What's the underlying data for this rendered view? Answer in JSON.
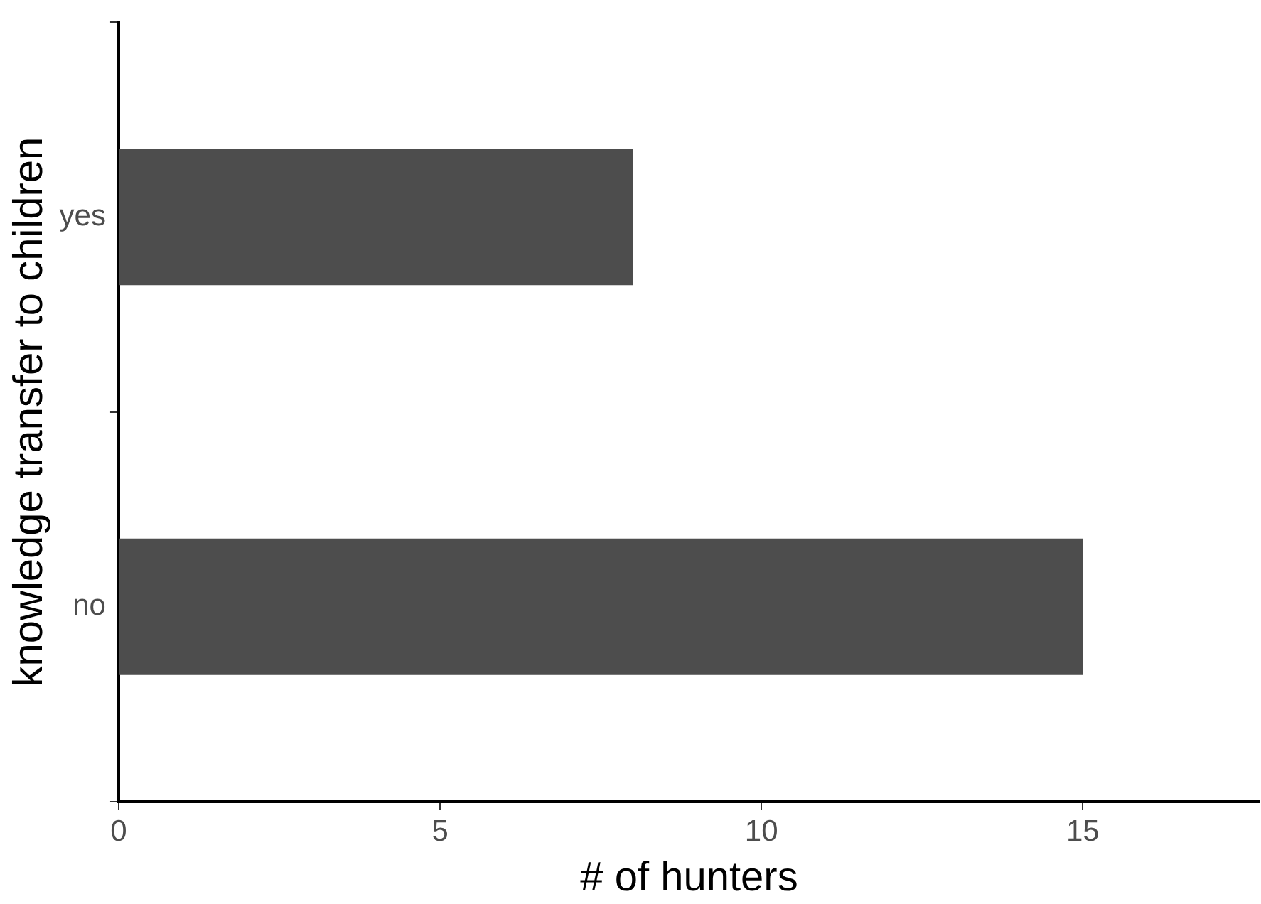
{
  "chart_data": {
    "type": "bar",
    "orientation": "horizontal",
    "categories": [
      "yes",
      "no"
    ],
    "values": [
      8,
      15
    ],
    "color": "#4d4d4d",
    "xlabel": "# of hunters",
    "ylabel": "knowledge transfer to children",
    "xlim": [
      0,
      17.75
    ],
    "xticks": [
      0,
      5,
      10,
      15
    ],
    "grid": false,
    "legend": false
  }
}
